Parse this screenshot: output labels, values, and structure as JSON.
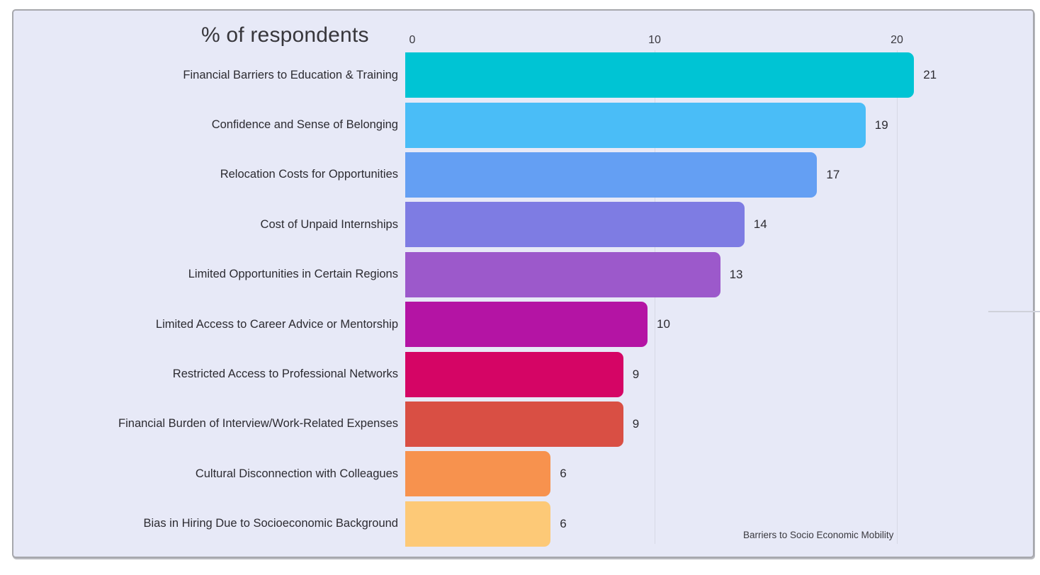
{
  "title": "% of respondents",
  "chart_data": {
    "type": "bar",
    "orientation": "horizontal",
    "title": "% of respondents",
    "categories": [
      "Financial Barriers to Education & Training",
      "Confidence and Sense of Belonging",
      "Relocation Costs for Opportunities",
      "Cost of Unpaid Internships",
      "Limited Opportunities in Certain Regions",
      "Limited Access to Career Advice or Mentorship",
      "Restricted Access to Professional Networks",
      "Financial Burden of Interview/Work-Related Expenses",
      "Cultural Disconnection with Colleagues",
      "Bias in Hiring Due to Socioeconomic Background"
    ],
    "values": [
      21,
      19,
      17,
      14,
      13,
      10,
      9,
      9,
      6,
      6
    ],
    "bar_colors": [
      "#00c4d4",
      "#4abdf7",
      "#649ff3",
      "#7e7ce3",
      "#9c59cb",
      "#b414a4",
      "#d50565",
      "#d94f44",
      "#f7924e",
      "#fdc977"
    ],
    "x_ticks": [
      0,
      10,
      20
    ],
    "xlim": [
      0,
      25
    ],
    "grid": "vertical",
    "legend": "none",
    "value_labels_shown": true,
    "caption": "Barriers to Socio Economic Mobility"
  },
  "colors": {
    "card_background": "#e7e9f7",
    "card_border": "#a6a7ac",
    "gridline": "#d6d8e5",
    "text": "#2c2b31"
  }
}
